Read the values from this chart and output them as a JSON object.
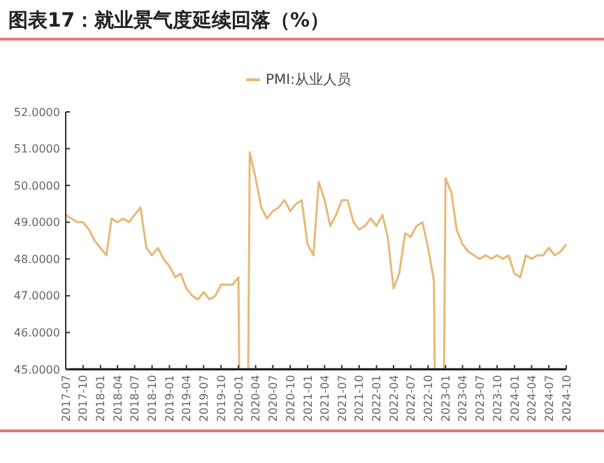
{
  "chart_data": {
    "type": "line",
    "title": "图表17：就业景气度延续回落（%）",
    "legend": "top",
    "x": [
      "2017-07",
      "2017-08",
      "2017-09",
      "2017-10",
      "2017-11",
      "2017-12",
      "2018-01",
      "2018-02",
      "2018-03",
      "2018-04",
      "2018-05",
      "2018-06",
      "2018-07",
      "2018-08",
      "2018-09",
      "2018-10",
      "2018-11",
      "2018-12",
      "2019-01",
      "2019-02",
      "2019-03",
      "2019-04",
      "2019-05",
      "2019-06",
      "2019-07",
      "2019-08",
      "2019-09",
      "2019-10",
      "2019-11",
      "2019-12",
      "2020-01",
      "2020-02",
      "2020-03",
      "2020-04",
      "2020-05",
      "2020-06",
      "2020-07",
      "2020-08",
      "2020-09",
      "2020-10",
      "2020-11",
      "2020-12",
      "2021-01",
      "2021-02",
      "2021-03",
      "2021-04",
      "2021-05",
      "2021-06",
      "2021-07",
      "2021-08",
      "2021-09",
      "2021-10",
      "2021-11",
      "2021-12",
      "2022-01",
      "2022-02",
      "2022-03",
      "2022-04",
      "2022-05",
      "2022-06",
      "2022-07",
      "2022-08",
      "2022-09",
      "2022-10",
      "2022-11",
      "2022-12",
      "2023-01",
      "2023-02",
      "2023-03",
      "2023-04",
      "2023-05",
      "2023-06",
      "2023-07",
      "2023-08",
      "2023-09",
      "2023-10",
      "2023-11",
      "2023-12",
      "2024-01",
      "2024-02",
      "2024-03",
      "2024-04",
      "2024-05",
      "2024-06",
      "2024-07",
      "2024-08",
      "2024-09",
      "2024-10"
    ],
    "series": [
      {
        "name": "PMI:从业人员",
        "color": "#e8b878",
        "values": [
          49.2,
          49.1,
          49.0,
          49.0,
          48.8,
          48.5,
          48.3,
          48.1,
          49.1,
          49.0,
          49.1,
          49.0,
          49.2,
          49.4,
          48.3,
          48.1,
          48.3,
          48.0,
          47.8,
          47.5,
          47.6,
          47.2,
          47.0,
          46.9,
          47.1,
          46.9,
          47.0,
          47.3,
          47.3,
          47.3,
          47.5,
          null,
          50.9,
          50.2,
          49.4,
          49.1,
          49.3,
          49.4,
          49.6,
          49.3,
          49.5,
          49.6,
          48.4,
          48.1,
          50.1,
          49.6,
          48.9,
          49.2,
          49.6,
          49.6,
          49.0,
          48.8,
          48.9,
          49.1,
          48.9,
          49.2,
          48.6,
          47.2,
          47.6,
          48.7,
          48.6,
          48.9,
          49.0,
          48.3,
          47.4,
          null,
          50.2,
          49.8,
          48.8,
          48.4,
          48.2,
          48.1,
          48.0,
          48.1,
          48.0,
          48.1,
          48.0,
          48.1,
          47.6,
          47.5,
          48.1,
          48.0,
          48.1,
          48.1,
          48.3,
          48.1,
          48.2,
          48.4
        ]
      }
    ],
    "xlim": [
      "2017-07",
      "2024-10"
    ],
    "xticks": [
      "2017-07",
      "2017-10",
      "2018-01",
      "2018-04",
      "2018-07",
      "2018-10",
      "2019-01",
      "2019-04",
      "2019-07",
      "2019-10",
      "2020-01",
      "2020-04",
      "2020-07",
      "2020-10",
      "2021-01",
      "2021-04",
      "2021-07",
      "2021-10",
      "2022-01",
      "2022-04",
      "2022-07",
      "2022-10",
      "2023-01",
      "2023-04",
      "2023-07",
      "2023-10",
      "2024-01",
      "2024-04",
      "2024-07",
      "2024-10"
    ],
    "ylim": [
      45,
      52
    ],
    "yticks": [
      {
        "value": 45,
        "label": "45.0000"
      },
      {
        "value": 46,
        "label": "46.0000"
      },
      {
        "value": 47,
        "label": "47.0000"
      },
      {
        "value": 48,
        "label": "48.0000"
      },
      {
        "value": 49,
        "label": "49.0000"
      },
      {
        "value": 50,
        "label": "50.0000"
      },
      {
        "value": 51,
        "label": "51.0000"
      },
      {
        "value": 52,
        "label": "52.0000"
      }
    ],
    "grid": false,
    "marker": "none",
    "line_style": "solid"
  }
}
